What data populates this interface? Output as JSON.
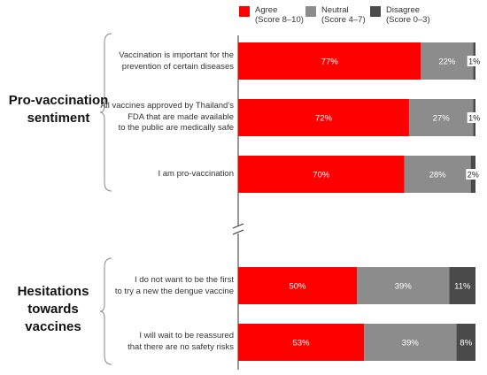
{
  "legend": [
    {
      "line1": "Agree",
      "line2": "(Score 8–10)",
      "color": "#ff0000"
    },
    {
      "line1": "Neutral",
      "line2": "(Score 4–7)",
      "color": "#8c8c8c"
    },
    {
      "line1": "Disagree",
      "line2": "(Score 0–3)",
      "color": "#4a4a4a"
    }
  ],
  "groups": [
    {
      "title_line1": "Pro-vaccination",
      "title_line2": "sentiment",
      "title_line3": ""
    },
    {
      "title_line1": "Hesitations",
      "title_line2": "towards",
      "title_line3": "vaccines"
    }
  ],
  "chart_data": {
    "type": "bar",
    "orientation": "horizontal",
    "stacked": true,
    "normalized": true,
    "unit": "%",
    "categories": [
      [
        "Vaccination is important for the",
        "prevention of certain diseases"
      ],
      [
        "All vaccines approved by Thailand’s",
        "FDA that are made available",
        "to the public are medically safe"
      ],
      [
        "I am pro-vaccination"
      ],
      [
        "I do not want to be the first",
        "to try a new the dengue vaccine"
      ],
      [
        "I will wait to be reassured",
        "that there are no safety risks"
      ]
    ],
    "series": [
      {
        "name": "Agree (Score 8–10)",
        "color": "#ff0000",
        "values": [
          77,
          72,
          70,
          50,
          53
        ],
        "labels": [
          "77%",
          "72%",
          "70%",
          "50%",
          "53%"
        ]
      },
      {
        "name": "Neutral (Score 4–7)",
        "color": "#8c8c8c",
        "values": [
          22,
          27,
          28,
          39,
          39
        ],
        "labels": [
          "22%",
          "27%",
          "28%",
          "39%",
          "39%"
        ]
      },
      {
        "name": "Disagree (Score 0–3)",
        "color": "#4a4a4a",
        "values": [
          1,
          1,
          2,
          11,
          8
        ],
        "labels": [
          "1%",
          "1%",
          "2%",
          "11%",
          "8%"
        ]
      }
    ],
    "axis_break": true,
    "grid": false,
    "legend_position": "top-right"
  }
}
